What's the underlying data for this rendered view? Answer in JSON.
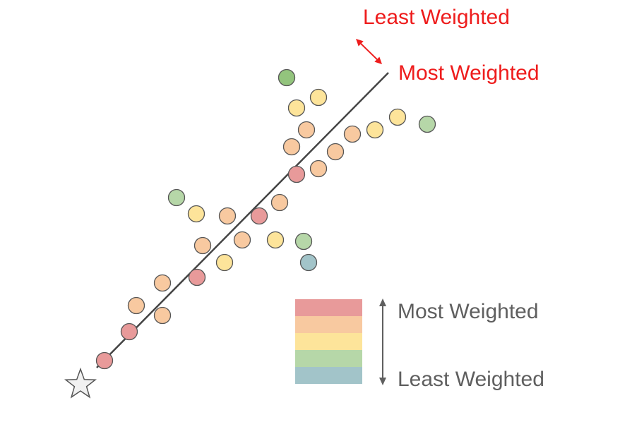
{
  "top_labels": {
    "least": "Least Weighted",
    "most": "Most Weighted",
    "color": "#ee1c1c"
  },
  "legend": {
    "most": "Most Weighted",
    "least": "Least Weighted",
    "text_color": "#5f5f5f",
    "arrow_color": "#5f5f5f",
    "swatches": [
      "#e89a9a",
      "#f8c9a0",
      "#fde49a",
      "#b6d7a8",
      "#a2c4c9"
    ]
  },
  "colors": {
    "red": "#e89a9a",
    "orange": "#f8c9a0",
    "yellow": "#fde49a",
    "lightgreen": "#b6d7a8",
    "green": "#93c47d",
    "blue": "#a2c4c9",
    "line": "#444444",
    "outline": "#555555",
    "star_fill": "#f1f1f1",
    "star_stroke": "#555555"
  },
  "icons": [
    "star-icon",
    "double-arrow-icon"
  ]
}
